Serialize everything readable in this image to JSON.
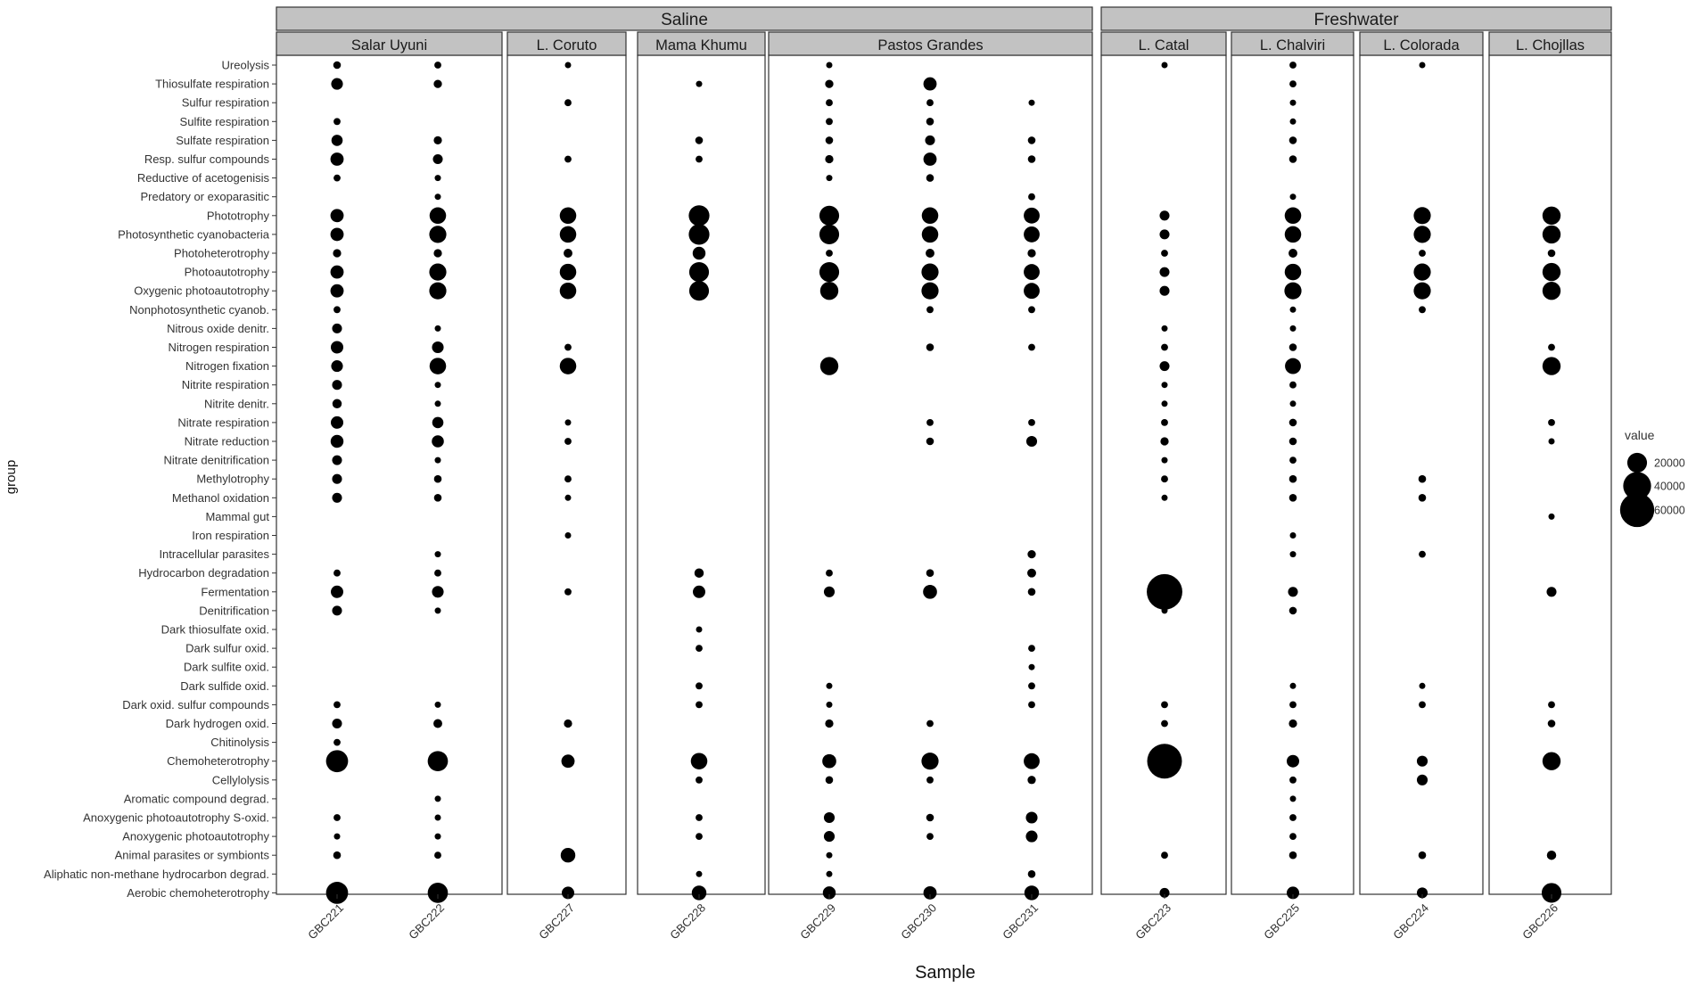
{
  "chart_data": {
    "type": "scatter",
    "encoding": "bubble",
    "xlabel": "Sample",
    "ylabel": "group",
    "groups": [
      "Ureolysis",
      "Thiosulfate respiration",
      "Sulfur respiration",
      "Sulfite respiration",
      "Sulfate respiration",
      "Resp. sulfur compounds",
      "Reductive of acetogenisis",
      "Predatory or exoparasitic",
      "Phototrophy",
      "Photosynthetic cyanobacteria",
      "Photoheterotrophy",
      "Photoautotrophy",
      "Oxygenic photoautotrophy",
      "Nonphotosynthetic cyanob.",
      "Nitrous oxide denitr.",
      "Nitrogen respiration",
      "Nitrogen fixation",
      "Nitrite respiration",
      "Nitrite denitr.",
      "Nitrate respiration",
      "Nitrate reduction",
      "Nitrate denitrification",
      "Methylotrophy",
      "Methanol oxidation",
      "Mammal gut",
      "Iron respiration",
      "Intracellular parasites",
      "Hydrocarbon degradation",
      "Fermentation",
      "Denitrification",
      "Dark thiosulfate oxid.",
      "Dark sulfur oxid.",
      "Dark sulfite oxid.",
      "Dark sulfide oxid.",
      "Dark oxid. sulfur compounds",
      "Dark hydrogen oxid.",
      "Chitinolysis",
      "Chemoheterotrophy",
      "Cellylolysis",
      "Aromatic compound degrad.",
      "Anoxygenic photoautotrophy S-oxid.",
      "Anoxygenic photoautotrophy",
      "Animal parasites or symbionts",
      "Aliphatic non-methane hydrocarbon degrad.",
      "Aerobic chemoheterotrophy"
    ],
    "facet_top": [
      {
        "label": "Saline",
        "lakes": [
          "Salar Uyuni",
          "L. Coruto",
          "Mama Khumu",
          "Pastos Grandes"
        ]
      },
      {
        "label": "Freshwater",
        "lakes": [
          "L. Catal",
          "L. Chalviri",
          "L. Colorada",
          "L. Chojllas"
        ]
      }
    ],
    "lakes": [
      {
        "name": "Salar Uyuni",
        "samples": [
          "GBC221",
          "GBC222"
        ]
      },
      {
        "name": "L. Coruto",
        "samples": [
          "GBC227"
        ]
      },
      {
        "name": "Mama Khumu",
        "samples": [
          "GBC228"
        ]
      },
      {
        "name": "Pastos Grandes",
        "samples": [
          "GBC229",
          "GBC230",
          "GBC231"
        ]
      },
      {
        "name": "L. Catal",
        "samples": [
          "GBC223"
        ]
      },
      {
        "name": "L. Chalviri",
        "samples": [
          "GBC225"
        ]
      },
      {
        "name": "L. Colorada",
        "samples": [
          "GBC224"
        ]
      },
      {
        "name": "L. Chojllas",
        "samples": [
          "GBC226"
        ]
      }
    ],
    "values": {
      "GBC221": {
        "Ureolysis": 3000,
        "Thiosulfate respiration": 7000,
        "Sulfite respiration": 2500,
        "Sulfate respiration": 6500,
        "Resp. sulfur compounds": 9000,
        "Reductive of acetogenisis": 2500,
        "Phototrophy": 9000,
        "Photosynthetic cyanobacteria": 9000,
        "Photoheterotrophy": 3500,
        "Photoautotrophy": 9000,
        "Oxygenic photoautotrophy": 9000,
        "Nonphotosynthetic cyanob.": 2500,
        "Nitrous oxide denitr.": 5000,
        "Nitrogen respiration": 8000,
        "Nitrogen fixation": 7000,
        "Nitrite respiration": 5000,
        "Nitrite denitr.": 4500,
        "Nitrate respiration": 8000,
        "Nitrate reduction": 8500,
        "Nitrate denitrification": 5000,
        "Methylotrophy": 5000,
        "Methanol oxidation": 5000,
        "Hydrocarbon degradation": 2500,
        "Fermentation": 8000,
        "Denitrification": 5000,
        "Dark oxid. sulfur compounds": 2500,
        "Dark hydrogen oxid.": 5000,
        "Chitinolysis": 2500,
        "Chemoheterotrophy": 25000,
        "Anoxygenic photoautotrophy S-oxid.": 2500,
        "Anoxygenic photoautotrophy": 2000,
        "Animal parasites or symbionts": 3000,
        "Aerobic chemoheterotrophy": 25000
      },
      "GBC222": {
        "Ureolysis": 2500,
        "Thiosulfate respiration": 3500,
        "Sulfate respiration": 3500,
        "Resp. sulfur compounds": 5000,
        "Reductive of acetogenisis": 2000,
        "Predatory or exoparasitic": 2000,
        "Phototrophy": 14000,
        "Photosynthetic cyanobacteria": 15000,
        "Photoheterotrophy": 3500,
        "Photoautotrophy": 15000,
        "Oxygenic photoautotrophy": 15000,
        "Nitrous oxide denitr.": 2000,
        "Nitrogen respiration": 7000,
        "Nitrogen fixation": 14000,
        "Nitrite respiration": 2000,
        "Nitrite denitr.": 2000,
        "Nitrate respiration": 6500,
        "Nitrate reduction": 7500,
        "Nitrate denitrification": 2000,
        "Methylotrophy": 3000,
        "Methanol oxidation": 3000,
        "Intracellular parasites": 2000,
        "Hydrocarbon degradation": 2500,
        "Fermentation": 7000,
        "Denitrification": 2000,
        "Dark oxid. sulfur compounds": 2000,
        "Dark hydrogen oxid.": 4000,
        "Chemoheterotrophy": 21000,
        "Aromatic compound degrad.": 2000,
        "Anoxygenic photoautotrophy S-oxid.": 2000,
        "Anoxygenic photoautotrophy": 2000,
        "Animal parasites or symbionts": 2500,
        "Aerobic chemoheterotrophy": 21000
      },
      "GBC227": {
        "Ureolysis": 2000,
        "Sulfur respiration": 2500,
        "Resp. sulfur compounds": 2500,
        "Phototrophy": 14000,
        "Photosynthetic cyanobacteria": 14000,
        "Photoheterotrophy": 4000,
        "Photoautotrophy": 14000,
        "Oxygenic photoautotrophy": 14000,
        "Nitrogen respiration": 2500,
        "Nitrogen fixation": 14000,
        "Nitrate respiration": 2000,
        "Nitrate reduction": 2500,
        "Methylotrophy": 2500,
        "Methanol oxidation": 2000,
        "Iron respiration": 2000,
        "Fermentation": 2500,
        "Dark hydrogen oxid.": 3500,
        "Chemoheterotrophy": 9000,
        "Animal parasites or symbionts": 11000,
        "Aerobic chemoheterotrophy": 8000
      },
      "GBC228": {
        "Thiosulfate respiration": 2000,
        "Sulfate respiration": 3000,
        "Resp. sulfur compounds": 2500,
        "Phototrophy": 22000,
        "Photosynthetic cyanobacteria": 22000,
        "Photoheterotrophy": 8500,
        "Photoautotrophy": 20000,
        "Oxygenic photoautotrophy": 20000,
        "Hydrocarbon degradation": 4500,
        "Fermentation": 8000,
        "Dark thiosulfate oxid.": 2000,
        "Dark sulfur oxid.": 2500,
        "Dark sulfide oxid.": 2500,
        "Dark oxid. sulfur compounds": 2500,
        "Chemoheterotrophy": 14000,
        "Cellylolysis": 2500,
        "Anoxygenic photoautotrophy S-oxid.": 2500,
        "Anoxygenic photoautotrophy": 2500,
        "Aliphatic non-methane hydrocarbon degrad.": 2000,
        "Aerobic chemoheterotrophy": 11000
      },
      "GBC229": {
        "Ureolysis": 2000,
        "Thiosulfate respiration": 3500,
        "Sulfur respiration": 2500,
        "Sulfite respiration": 2500,
        "Sulfate respiration": 3000,
        "Resp. sulfur compounds": 3500,
        "Reductive of acetogenisis": 2000,
        "Phototrophy": 20000,
        "Photosynthetic cyanobacteria": 20000,
        "Photoheterotrophy": 2500,
        "Photoautotrophy": 20000,
        "Oxygenic photoautotrophy": 17000,
        "Nitrogen fixation": 17000,
        "Hydrocarbon degradation": 2500,
        "Fermentation": 6000,
        "Dark sulfide oxid.": 2000,
        "Dark oxid. sulfur compounds": 2000,
        "Dark hydrogen oxid.": 3500,
        "Chemoheterotrophy": 10000,
        "Cellylolysis": 3000,
        "Anoxygenic photoautotrophy S-oxid.": 6000,
        "Anoxygenic photoautotrophy": 6000,
        "Animal parasites or symbionts": 2000,
        "Aliphatic non-methane hydrocarbon degrad.": 2000,
        "Aerobic chemoheterotrophy": 8500
      },
      "GBC230": {
        "Thiosulfate respiration": 9000,
        "Sulfur respiration": 2500,
        "Sulfite respiration": 3000,
        "Sulfate respiration": 5000,
        "Resp. sulfur compounds": 9000,
        "Reductive of acetogenisis": 3000,
        "Phototrophy": 14000,
        "Photosynthetic cyanobacteria": 14000,
        "Photoheterotrophy": 4000,
        "Photoautotrophy": 15000,
        "Oxygenic photoautotrophy": 15000,
        "Nonphotosynthetic cyanob.": 2500,
        "Nitrogen respiration": 3000,
        "Nitrate respiration": 2500,
        "Nitrate reduction": 3000,
        "Hydrocarbon degradation": 3000,
        "Fermentation": 10000,
        "Dark hydrogen oxid.": 2500,
        "Chemoheterotrophy": 15000,
        "Cellylolysis": 2500,
        "Anoxygenic photoautotrophy S-oxid.": 3000,
        "Anoxygenic photoautotrophy": 2500,
        "Aerobic chemoheterotrophy": 9000
      },
      "GBC231": {
        "Sulfur respiration": 2000,
        "Sulfate respiration": 3000,
        "Resp. sulfur compounds": 3000,
        "Predatory or exoparasitic": 2500,
        "Phototrophy": 13000,
        "Photosynthetic cyanobacteria": 13000,
        "Photoheterotrophy": 3500,
        "Photoautotrophy": 13000,
        "Oxygenic photoautotrophy": 13000,
        "Nonphotosynthetic cyanob.": 2500,
        "Nitrogen respiration": 2500,
        "Nitrate respiration": 2500,
        "Nitrate reduction": 6000,
        "Intracellular parasites": 3500,
        "Hydrocarbon degradation": 4000,
        "Fermentation": 3000,
        "Dark sulfur oxid.": 2500,
        "Dark sulfite oxid.": 2000,
        "Dark sulfide oxid.": 2500,
        "Dark oxid. sulfur compounds": 2500,
        "Chemoheterotrophy": 13000,
        "Cellylolysis": 3500,
        "Anoxygenic photoautotrophy S-oxid.": 7000,
        "Anoxygenic photoautotrophy": 7000,
        "Aliphatic non-methane hydrocarbon degrad.": 3000,
        "Aerobic chemoheterotrophy": 11000
      },
      "GBC223": {
        "Ureolysis": 2000,
        "Phototrophy": 5000,
        "Photosynthetic cyanobacteria": 5000,
        "Photoheterotrophy": 2500,
        "Photoautotrophy": 5000,
        "Oxygenic photoautotrophy": 5000,
        "Nitrous oxide denitr.": 2000,
        "Nitrogen respiration": 2500,
        "Nitrogen fixation": 5000,
        "Nitrite respiration": 2000,
        "Nitrite denitr.": 2000,
        "Nitrate respiration": 2500,
        "Nitrate reduction": 3500,
        "Nitrate denitrification": 2000,
        "Methylotrophy": 2500,
        "Methanol oxidation": 2000,
        "Fermentation": 65000,
        "Denitrification": 2000,
        "Dark oxid. sulfur compounds": 2500,
        "Dark hydrogen oxid.": 2500,
        "Chemoheterotrophy": 62000,
        "Animal parasites or symbionts": 2500,
        "Aerobic chemoheterotrophy": 5000
      },
      "GBC225": {
        "Ureolysis": 2500,
        "Thiosulfate respiration": 2500,
        "Sulfur respiration": 2000,
        "Sulfite respiration": 2000,
        "Sulfate respiration": 3000,
        "Resp. sulfur compounds": 3000,
        "Predatory or exoparasitic": 2000,
        "Phototrophy": 14000,
        "Photosynthetic cyanobacteria": 14000,
        "Photoheterotrophy": 4000,
        "Photoautotrophy": 14000,
        "Oxygenic photoautotrophy": 15000,
        "Nonphotosynthetic cyanob.": 2000,
        "Nitrous oxide denitr.": 2000,
        "Nitrogen respiration": 3000,
        "Nitrogen fixation": 13000,
        "Nitrite respiration": 2500,
        "Nitrite denitr.": 2000,
        "Nitrate respiration": 3000,
        "Nitrate reduction": 3000,
        "Nitrate denitrification": 2500,
        "Methylotrophy": 3000,
        "Methanol oxidation": 3000,
        "Iron respiration": 2000,
        "Intracellular parasites": 2000,
        "Fermentation": 5000,
        "Denitrification": 3000,
        "Dark sulfide oxid.": 2000,
        "Dark oxid. sulfur compounds": 2500,
        "Dark hydrogen oxid.": 3500,
        "Chemoheterotrophy": 8000,
        "Cellylolysis": 2500,
        "Aromatic compound degrad.": 2000,
        "Anoxygenic photoautotrophy S-oxid.": 2500,
        "Anoxygenic photoautotrophy": 2500,
        "Animal parasites or symbionts": 3000,
        "Aerobic chemoheterotrophy": 8000
      },
      "GBC224": {
        "Ureolysis": 2000,
        "Phototrophy": 15000,
        "Photosynthetic cyanobacteria": 15000,
        "Photoheterotrophy": 2500,
        "Photoautotrophy": 15000,
        "Oxygenic photoautotrophy": 15000,
        "Nonphotosynthetic cyanob.": 2500,
        "Methylotrophy": 3000,
        "Methanol oxidation": 3000,
        "Intracellular parasites": 2500,
        "Dark sulfide oxid.": 2000,
        "Dark oxid. sulfur compounds": 2500,
        "Chemoheterotrophy": 6000,
        "Cellylolysis": 6000,
        "Animal parasites or symbionts": 3000,
        "Aerobic chemoheterotrophy": 6000
      },
      "GBC226": {
        "Phototrophy": 17000,
        "Photosynthetic cyanobacteria": 17000,
        "Photoheterotrophy": 3000,
        "Photoautotrophy": 17000,
        "Oxygenic photoautotrophy": 17000,
        "Nitrogen respiration": 2500,
        "Nitrogen fixation": 17000,
        "Nitrate respiration": 2500,
        "Nitrate reduction": 2000,
        "Mammal gut": 2000,
        "Fermentation": 5000,
        "Dark oxid. sulfur compounds": 2500,
        "Dark hydrogen oxid.": 3000,
        "Chemoheterotrophy": 17000,
        "Animal parasites or symbionts": 4500,
        "Aerobic chemoheterotrophy": 20000
      }
    },
    "legend": {
      "title": "value",
      "entries": [
        20000,
        40000,
        60000
      ],
      "labels": [
        "20000",
        "40000",
        "60000"
      ],
      "position": "right"
    },
    "grid": true,
    "point_color": "#000000",
    "panel_strip_color": "#c2c2c2",
    "grid_color": "#ebebeb"
  }
}
